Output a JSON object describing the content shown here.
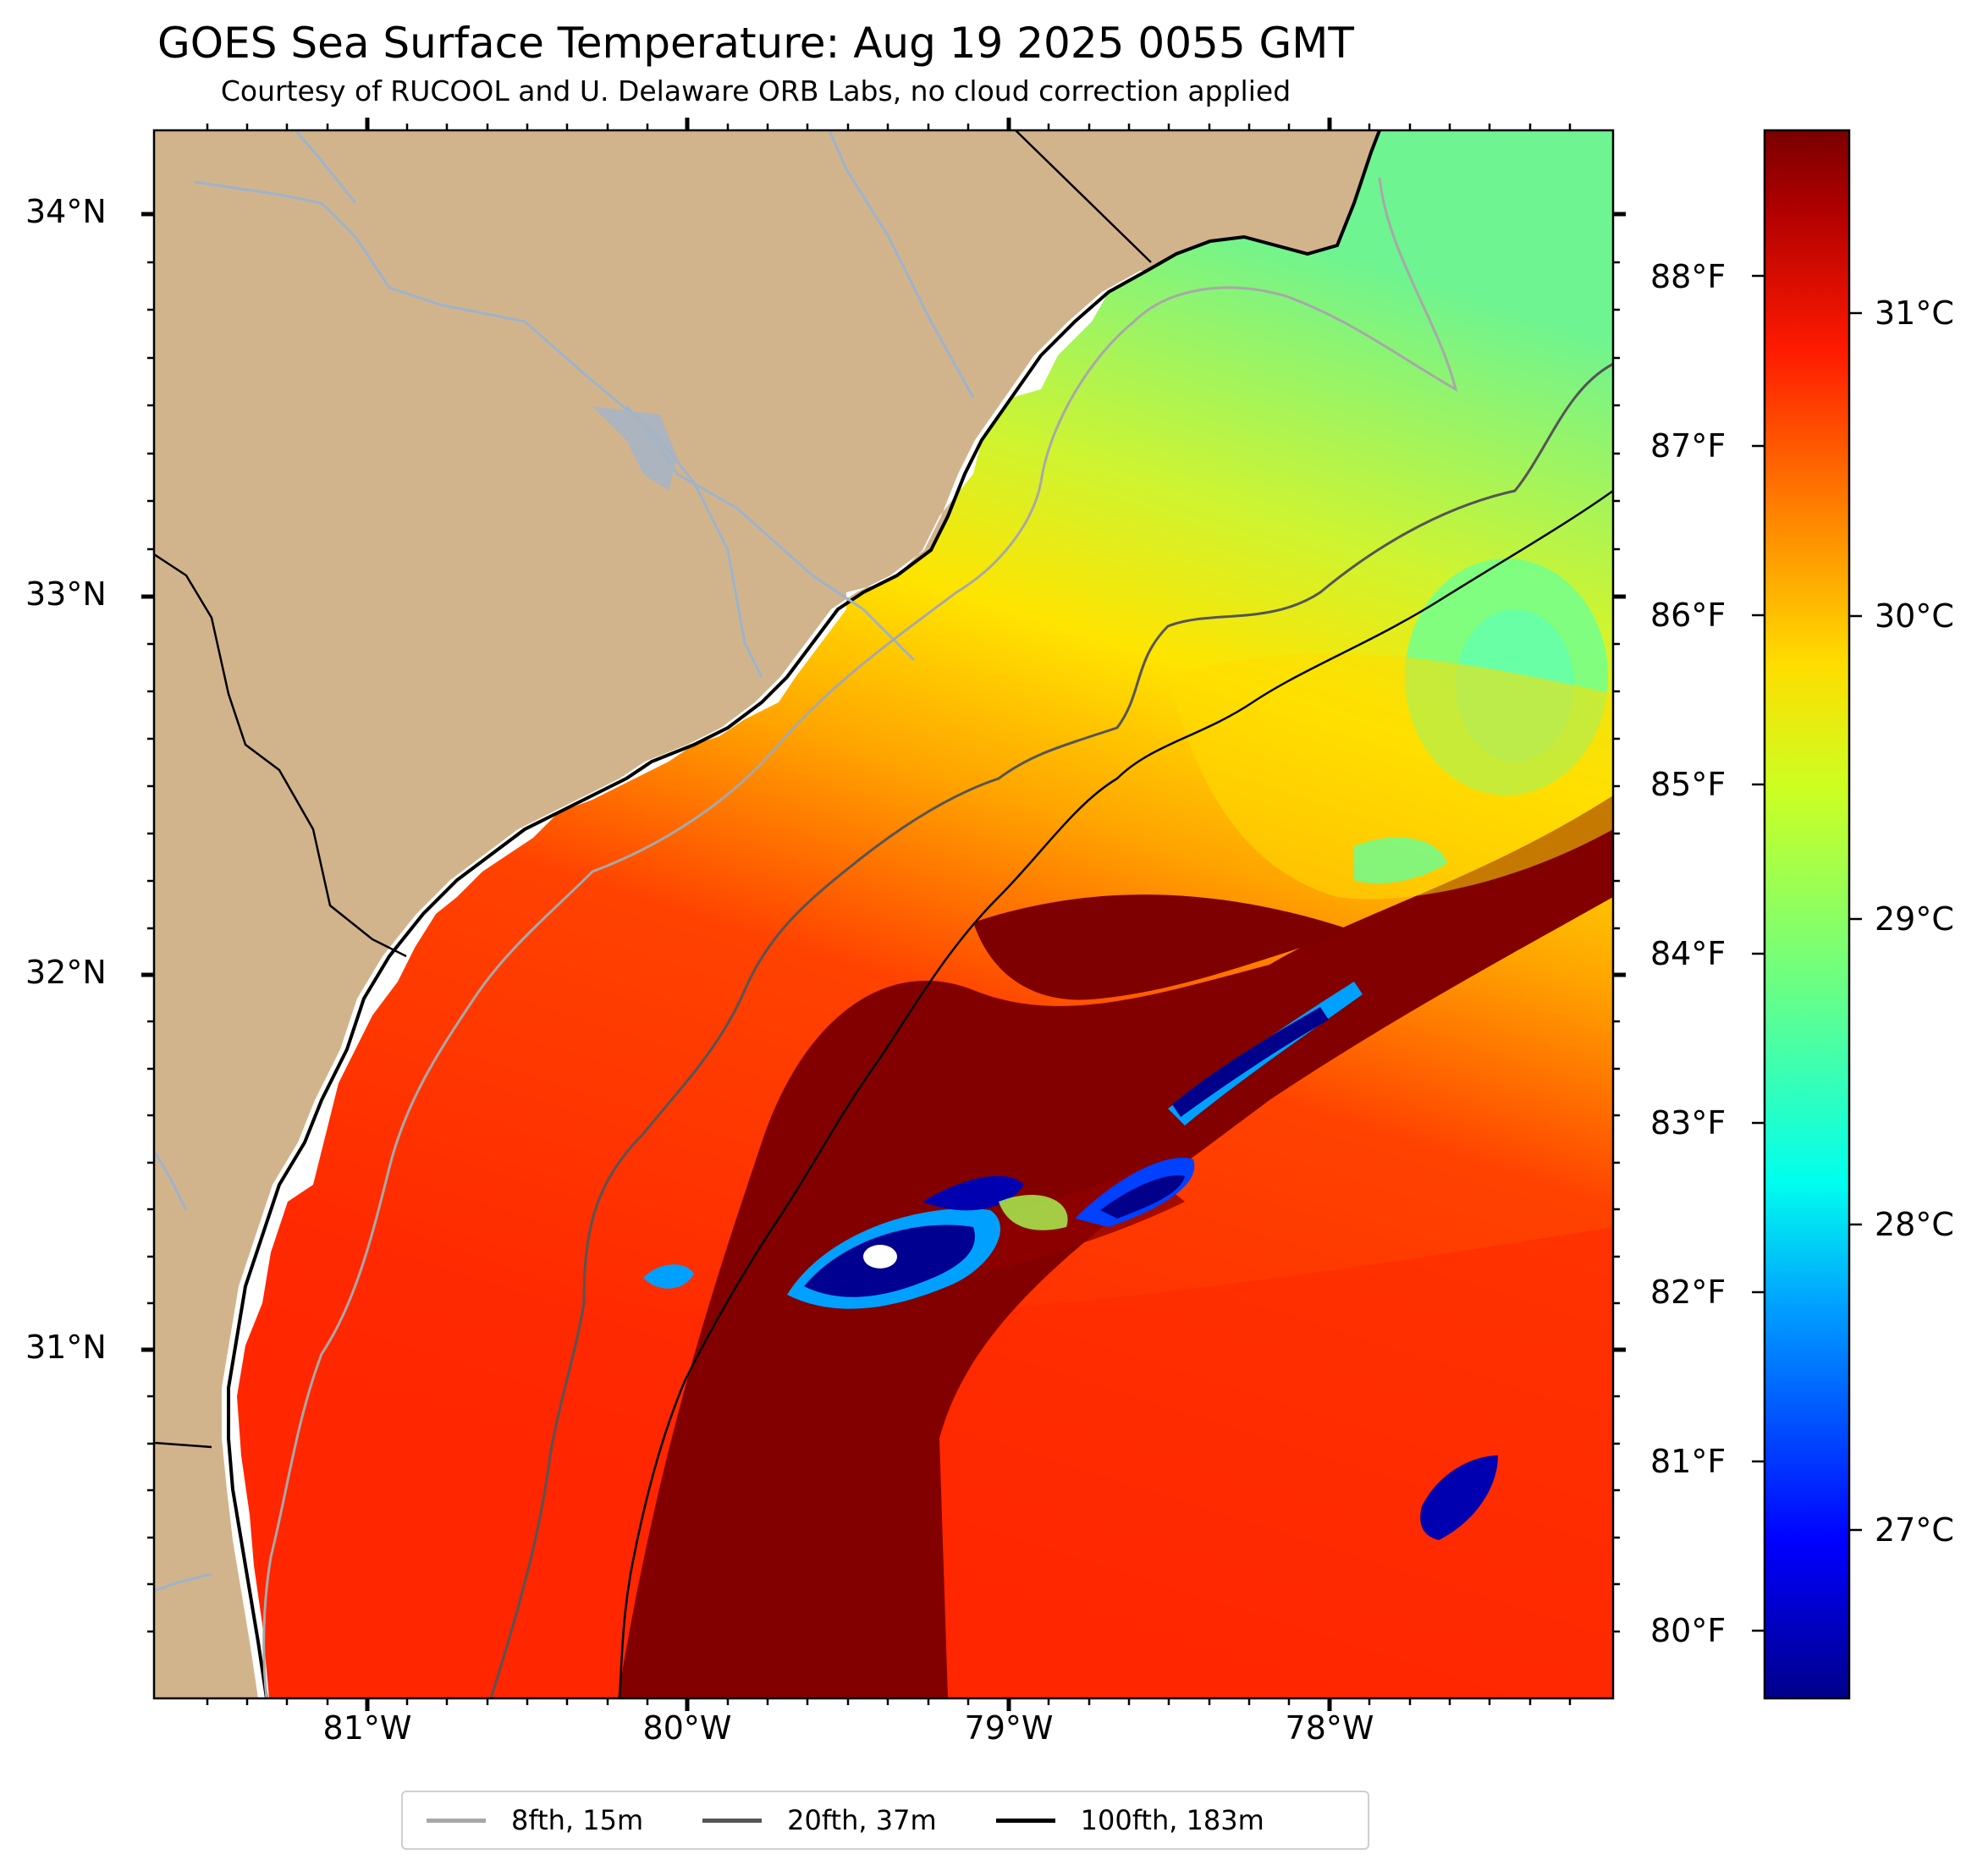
{
  "title": "GOES Sea Surface Temperature: Aug 19 2025 0055 GMT",
  "subtitle": "Courtesy of RUCOOL and U. Delaware ORB Labs, no cloud correction applied",
  "lat_labels": [
    "34°N",
    "33°N",
    "32°N",
    "31°N"
  ],
  "lon_labels": [
    "81°W",
    "80°W",
    "79°W",
    "78°W"
  ],
  "colorbar_f_labels": [
    "88°F",
    "87°F",
    "86°F",
    "85°F",
    "84°F",
    "83°F",
    "82°F",
    "81°F",
    "80°F"
  ],
  "colorbar_c_labels": [
    "31°C",
    "30°C",
    "29°C",
    "28°C",
    "27°C"
  ],
  "legend": [
    {
      "label": "8fth, 15m",
      "color": "#a8a8a8"
    },
    {
      "label": "20fth, 37m",
      "color": "#555555"
    },
    {
      "label": "100fth, 183m",
      "color": "#000000"
    }
  ],
  "colors": {
    "land": "#d2b48c",
    "river": "#9db3cc",
    "sst_hot": "#800000",
    "sst_warm": "#ff2a00",
    "sst_mid": "#ffcc00",
    "sst_cool": "#66ff99",
    "sst_cold": "#000090"
  }
}
